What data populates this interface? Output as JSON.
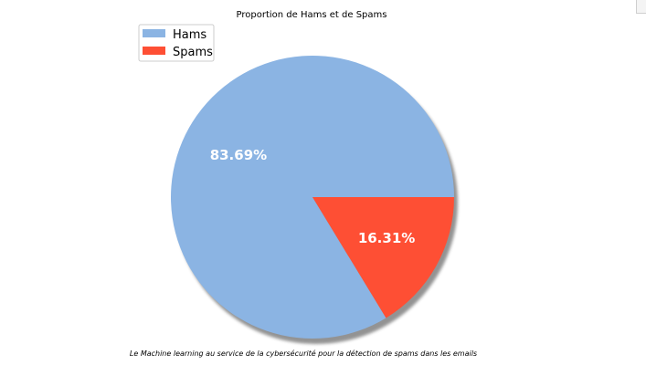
{
  "chart_data": {
    "type": "pie",
    "title": "Proportion de Hams et de Spams",
    "categories": [
      "Hams",
      "Spams"
    ],
    "values": [
      83.69,
      16.31
    ],
    "labels": [
      "83.69%",
      "16.31%"
    ],
    "colors": [
      "#8bb4e3",
      "#fe4f34"
    ],
    "shadow": true,
    "legend": {
      "placement": "top-left",
      "entries": [
        "Hams",
        "Spams"
      ]
    },
    "caption": "Le Machine learning au service de la cybersécurité pour la détection de spams dans les emails"
  }
}
